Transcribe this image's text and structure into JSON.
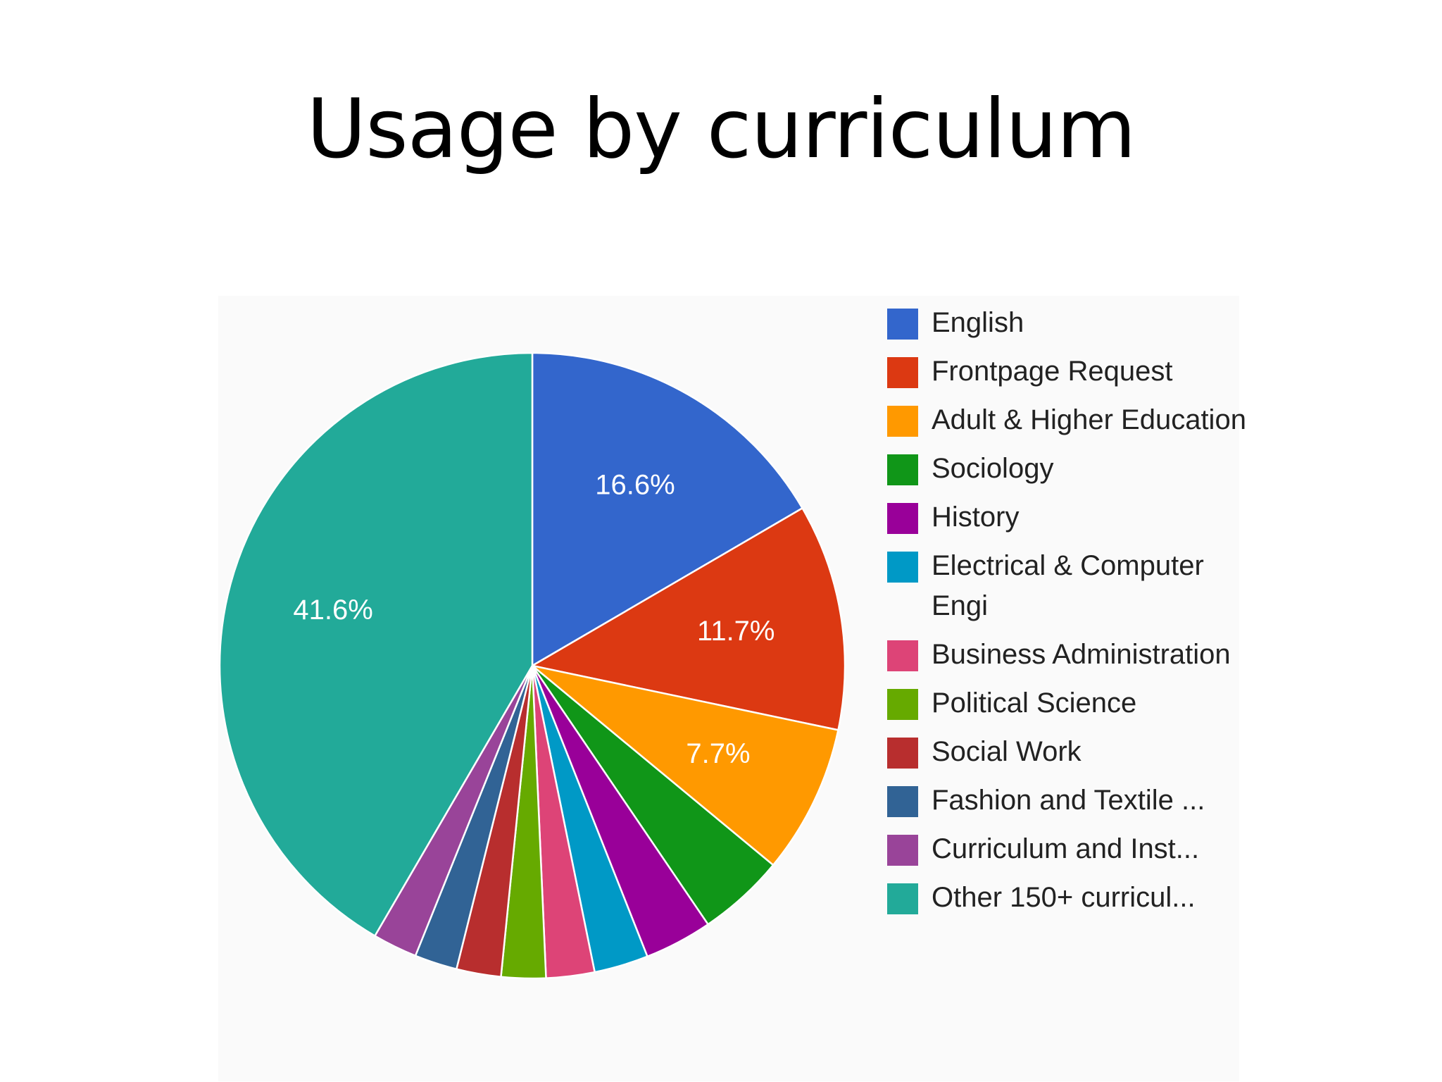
{
  "slide": {
    "title": "Usage by curriculum"
  },
  "chart_data": {
    "type": "pie",
    "title": "Usage by curriculum",
    "legend_position": "right",
    "slices": [
      {
        "label": "English",
        "value": 16.6,
        "display": "16.6%",
        "color": "#3366cc"
      },
      {
        "label": "Frontpage Request",
        "value": 11.7,
        "display": "11.7%",
        "color": "#dc3912"
      },
      {
        "label": "Adult & Higher Education",
        "value": 7.7,
        "display": "7.7%",
        "color": "#ff9900"
      },
      {
        "label": "Sociology",
        "value": 4.5,
        "display": "",
        "color": "#109618"
      },
      {
        "label": "History",
        "value": 3.5,
        "display": "",
        "color": "#990099"
      },
      {
        "label": "Electrical & Computer Engi",
        "value": 2.8,
        "display": "",
        "color": "#0099c6"
      },
      {
        "label": "Business Administration",
        "value": 2.5,
        "display": "",
        "color": "#dd4477"
      },
      {
        "label": "Political Science",
        "value": 2.3,
        "display": "",
        "color": "#66aa00"
      },
      {
        "label": "Social Work",
        "value": 2.3,
        "display": "",
        "color": "#b82e2e"
      },
      {
        "label": "Fashion and Textile ...",
        "value": 2.2,
        "display": "",
        "color": "#316395"
      },
      {
        "label": "Curriculum and Inst...",
        "value": 2.3,
        "display": "",
        "color": "#994499"
      },
      {
        "label": "Other 150+ curricul...",
        "value": 41.6,
        "display": "41.6%",
        "color": "#22aa99"
      }
    ]
  }
}
